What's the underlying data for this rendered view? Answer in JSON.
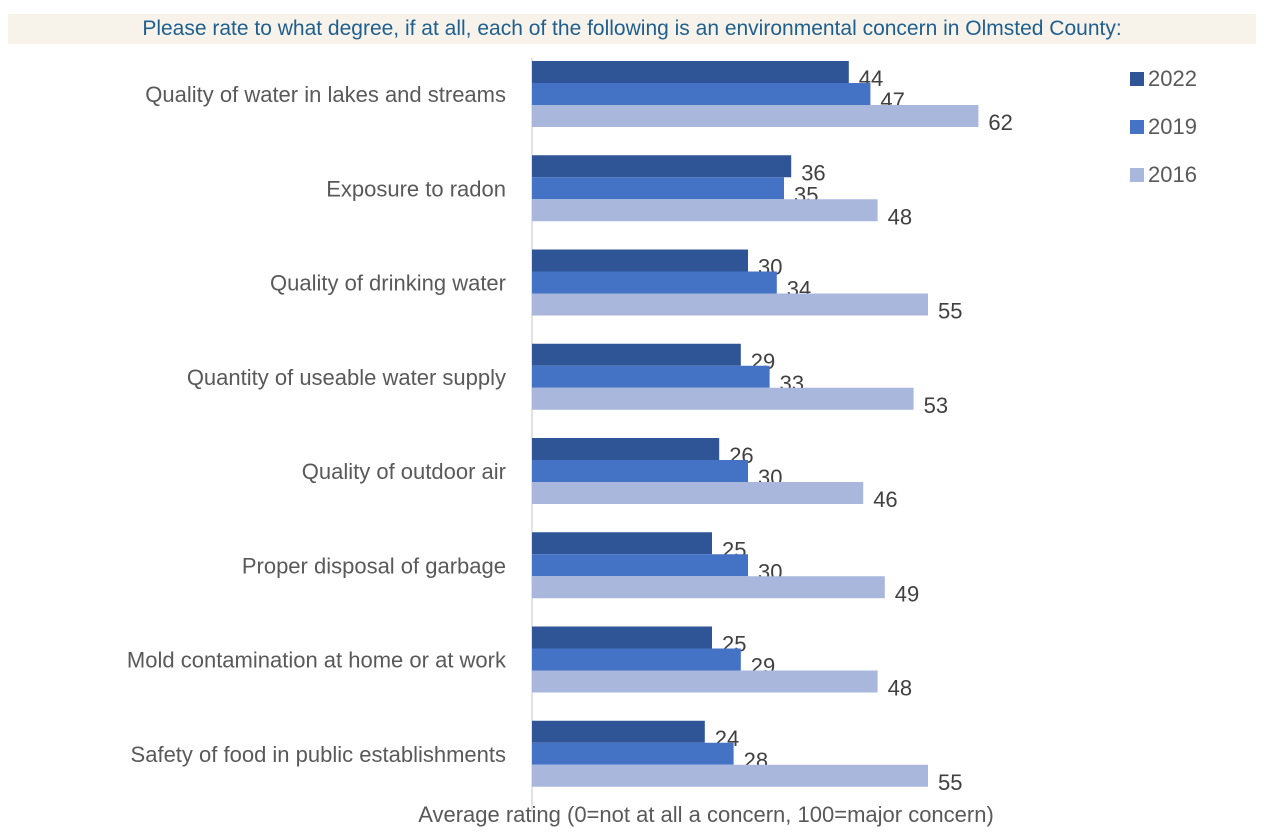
{
  "chart_data": {
    "type": "bar",
    "orientation": "horizontal",
    "title": "Please rate to what degree, if at all, each of the following is an environmental concern in Olmsted County:",
    "xlabel": "Average rating (0=not at all a concern, 100=major concern)",
    "ylabel": "",
    "xlim": [
      0,
      100
    ],
    "grid": false,
    "legend_position": "top-right",
    "categories": [
      "Quality of water in lakes and streams",
      "Exposure to radon",
      "Quality of drinking water",
      "Quantity of useable water supply",
      "Quality of outdoor air",
      "Proper disposal of garbage",
      "Mold contamination at home or at work",
      "Safety of food in public establishments"
    ],
    "series": [
      {
        "name": "2022",
        "color": "#2f5597",
        "values": [
          44,
          36,
          30,
          29,
          26,
          25,
          25,
          24
        ]
      },
      {
        "name": "2019",
        "color": "#4472c4",
        "values": [
          47,
          35,
          34,
          33,
          30,
          30,
          29,
          28
        ]
      },
      {
        "name": "2016",
        "color": "#a9b7dd",
        "values": [
          62,
          48,
          55,
          53,
          46,
          49,
          48,
          55
        ]
      }
    ]
  }
}
